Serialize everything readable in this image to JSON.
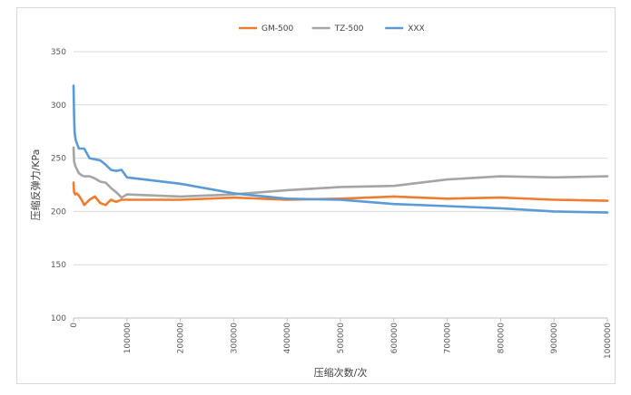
{
  "chart_data": {
    "type": "line",
    "title": "",
    "xlabel": "压缩次数/次",
    "ylabel": "压缩反弹力/KPa",
    "xlim": [
      0,
      1000000
    ],
    "ylim": [
      100,
      350
    ],
    "x_ticks": [
      0,
      100000,
      200000,
      300000,
      400000,
      500000,
      600000,
      700000,
      800000,
      900000,
      1000000
    ],
    "y_ticks": [
      100,
      150,
      200,
      250,
      300,
      350
    ],
    "x_tick_labels": [
      "0",
      "100000",
      "200000",
      "300000",
      "400000",
      "500000",
      "600000",
      "700000",
      "800000",
      "900000",
      "1000000"
    ],
    "y_tick_labels": [
      "100",
      "150",
      "200",
      "250",
      "300",
      "350"
    ],
    "grid": "horizontal",
    "legend_position": "top",
    "series": [
      {
        "name": "GM-500",
        "color": "#ED7D31",
        "x": [
          0,
          1000,
          3000,
          6000,
          10000,
          15000,
          20000,
          30000,
          40000,
          50000,
          55000,
          60000,
          70000,
          80000,
          90000,
          100000,
          200000,
          300000,
          400000,
          500000,
          600000,
          700000,
          800000,
          900000,
          1000000
        ],
        "y": [
          227,
          218,
          216,
          217,
          215,
          211,
          206,
          211,
          214,
          208,
          207,
          206,
          211,
          209,
          211,
          211,
          211,
          213,
          211,
          212,
          214,
          212,
          213,
          211,
          210
        ]
      },
      {
        "name": "TZ-500",
        "color": "#A5A5A5",
        "x": [
          0,
          1000,
          3000,
          6000,
          10000,
          15000,
          20000,
          30000,
          40000,
          50000,
          60000,
          70000,
          80000,
          90000,
          100000,
          200000,
          300000,
          400000,
          500000,
          600000,
          700000,
          800000,
          900000,
          1000000
        ],
        "y": [
          260,
          247,
          243,
          240,
          236,
          234,
          233,
          233,
          231,
          228,
          227,
          222,
          218,
          213,
          216,
          214,
          216,
          220,
          223,
          224,
          230,
          233,
          232,
          233
        ]
      },
      {
        "name": "XXX",
        "color": "#5B9BD5",
        "x": [
          0,
          1000,
          2000,
          4000,
          7000,
          10000,
          15000,
          20000,
          30000,
          40000,
          50000,
          60000,
          70000,
          80000,
          90000,
          100000,
          200000,
          300000,
          400000,
          500000,
          600000,
          700000,
          800000,
          900000,
          1000000
        ],
        "y": [
          318,
          290,
          274,
          267,
          263,
          259,
          259,
          259,
          250,
          249,
          248,
          244,
          239,
          238,
          239,
          232,
          226,
          217,
          212,
          211,
          207,
          205,
          203,
          200,
          199
        ]
      }
    ]
  }
}
